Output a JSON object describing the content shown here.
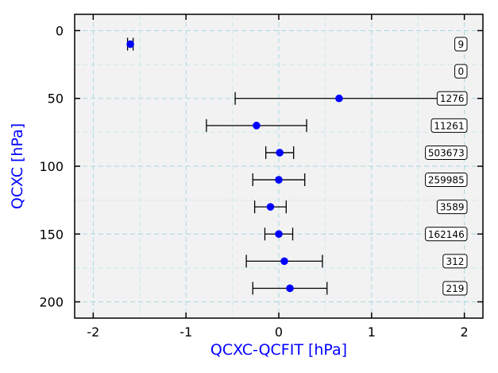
{
  "chart_data": {
    "type": "scatter",
    "xlabel": "QCXC-QCFIT [hPa]",
    "ylabel": "QCXC [hPa]",
    "xlim": [
      -2.2,
      2.2
    ],
    "ylim": [
      212,
      -12
    ],
    "x_ticks": [
      -2,
      -1,
      0,
      1,
      2
    ],
    "y_ticks": [
      0,
      50,
      100,
      150,
      200
    ],
    "y_inverted": true,
    "grid": true,
    "colors": {
      "point": "#0000ff",
      "errorbar": "#000000",
      "axis_title": "#0000ff",
      "plot_bg": "#f2f2f2",
      "grid": "#a8d8e0"
    },
    "series": [
      {
        "points": [
          {
            "y": 10,
            "x": -1.6,
            "err_low": -1.63,
            "err_high": -1.57,
            "count": "9"
          },
          {
            "y": 30,
            "count": "0"
          },
          {
            "y": 50,
            "x": 0.65,
            "err_low": -0.47,
            "err_high": 1.77,
            "count": "1276"
          },
          {
            "y": 70,
            "x": -0.24,
            "err_low": -0.78,
            "err_high": 0.3,
            "count": "11261"
          },
          {
            "y": 90,
            "x": 0.01,
            "err_low": -0.14,
            "err_high": 0.16,
            "count": "503673"
          },
          {
            "y": 110,
            "x": 0.0,
            "err_low": -0.28,
            "err_high": 0.28,
            "count": "259985"
          },
          {
            "y": 130,
            "x": -0.09,
            "err_low": -0.26,
            "err_high": 0.08,
            "count": "3589"
          },
          {
            "y": 150,
            "x": 0.0,
            "err_low": -0.15,
            "err_high": 0.15,
            "count": "162146"
          },
          {
            "y": 170,
            "x": 0.06,
            "err_low": -0.35,
            "err_high": 0.47,
            "count": "312"
          },
          {
            "y": 190,
            "x": 0.12,
            "err_low": -0.28,
            "err_high": 0.52,
            "count": "219"
          }
        ]
      }
    ]
  }
}
